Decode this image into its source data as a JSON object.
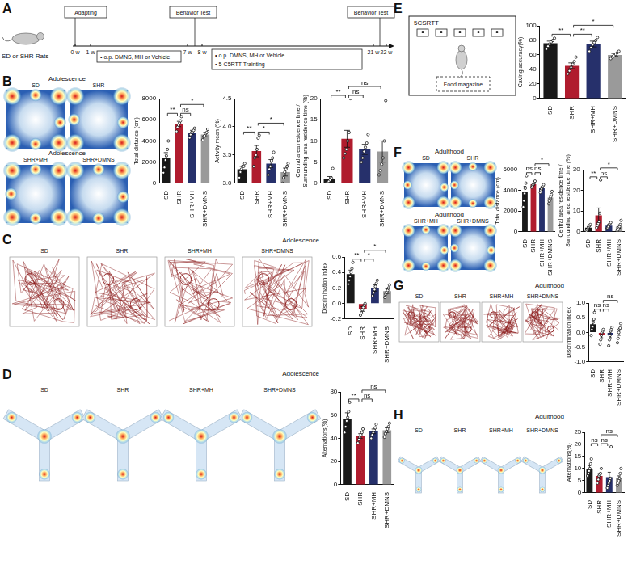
{
  "timeline": {
    "letter": "A",
    "subject": "SD or SHR Rats",
    "weeks": [
      "0 w",
      "1 w",
      "7 w",
      "8 w",
      "21 w",
      "22 w"
    ],
    "boxes": [
      {
        "lines": [
          "Adapting"
        ]
      },
      {
        "lines": [
          "• o.p. DMNS, MH or Vehicle"
        ]
      },
      {
        "lines": [
          "Behavior Test"
        ]
      },
      {
        "lines": [
          "• o.p. DMNS, MH or Vehicle",
          "• 5-C5RTT Trainting"
        ]
      },
      {
        "lines": [
          "Behavior Test"
        ]
      }
    ]
  },
  "task": {
    "letter": "E",
    "title": "5CSRTT",
    "box": "Food magazine"
  },
  "images": [
    {
      "letter": "B",
      "period": "Adolescence",
      "kind": "heatmap",
      "groups": [
        "SD",
        "SHR",
        "SHR+MH",
        "SHR+DMNS"
      ]
    },
    {
      "letter": "F",
      "period": "Adulthood",
      "kind": "heatmap",
      "groups": [
        "SD",
        "SHR",
        "SHR+MH",
        "SHR+DMNS"
      ]
    },
    {
      "letter": "C",
      "period": "Adolescence",
      "kind": "track",
      "groups": [
        "SD",
        "SHR",
        "SHR+MH",
        "SHR+DMNS"
      ]
    },
    {
      "letter": "G",
      "period": "Adulthood",
      "kind": "track",
      "groups": [
        "SD",
        "SHR",
        "SHR+MH",
        "SHR+DMNS"
      ]
    },
    {
      "letter": "D",
      "period": "Adolescence",
      "kind": "maze",
      "groups": [
        "SD",
        "SHR",
        "SHR+MH",
        "SHR+DMNS"
      ]
    },
    {
      "letter": "H",
      "period": "Adulthood",
      "kind": "maze",
      "groups": [
        "SD",
        "SHR",
        "SHR+MH",
        "SHR+DMNS"
      ]
    }
  ],
  "chart_data": [
    {
      "type": "bar",
      "y_label": "Total distance (cm)",
      "categories": [
        "SD",
        "SHR",
        "SHR+MH",
        "SHR+DMNS"
      ],
      "values": [
        2400,
        5600,
        4800,
        4600
      ],
      "errors": [
        500,
        250,
        200,
        200
      ],
      "points": [
        [
          1000,
          1500,
          2200,
          2600,
          3200,
          4000
        ],
        [
          4900,
          5300,
          5500,
          5700,
          5900,
          6300
        ],
        [
          4300,
          4600,
          4800,
          4900,
          5000,
          5200
        ],
        [
          4100,
          4400,
          4500,
          4700,
          4800,
          5100
        ]
      ],
      "colors": [
        "#1a1a1a",
        "#b01c2e",
        "#26306b",
        "#9a9a9a"
      ],
      "ylim": [
        0,
        8000
      ],
      "yticks": [
        0,
        2000,
        4000,
        6000,
        8000
      ],
      "grid": false,
      "significance": [
        {
          "from": "SD",
          "to": "SHR",
          "label": "**"
        },
        {
          "from": "SHR",
          "to": "SHR+MH",
          "label": "ns"
        },
        {
          "from": "SHR",
          "to": "SHR+DMNS",
          "label": "*"
        }
      ]
    },
    {
      "type": "bar",
      "y_label": "Activity mean (%)",
      "categories": [
        "SD",
        "SHR",
        "SHR+MH",
        "SHR+DMNS"
      ],
      "values": [
        3.25,
        3.57,
        3.35,
        3.2
      ],
      "errors": [
        0.05,
        0.1,
        0.07,
        0.07
      ],
      "points": [
        [
          3.1,
          3.2,
          3.25,
          3.3,
          3.3,
          3.35
        ],
        [
          3.3,
          3.45,
          3.5,
          3.6,
          3.8,
          3.85
        ],
        [
          3.15,
          3.25,
          3.3,
          3.4,
          3.45,
          3.55
        ],
        [
          3.0,
          3.1,
          3.2,
          3.25,
          3.3,
          3.35
        ]
      ],
      "colors": [
        "#1a1a1a",
        "#b01c2e",
        "#26306b",
        "#9a9a9a"
      ],
      "ylim": [
        3,
        4.5
      ],
      "yticks": [
        {
          "value": 3,
          "label": "3.0"
        },
        3.5,
        {
          "value": 4,
          "label": "4.0"
        },
        4.5
      ],
      "grid": false,
      "significance": [
        {
          "from": "SD",
          "to": "SHR",
          "label": "**"
        },
        {
          "from": "SHR",
          "to": "SHR+MH",
          "label": "*"
        },
        {
          "from": "SHR",
          "to": "SHR+DMNS",
          "label": "*"
        }
      ]
    },
    {
      "type": "bar",
      "y_label": [
        "Central area residence time /",
        "Surrounding area residence time (%)"
      ],
      "categories": [
        "SD",
        "SHR",
        "SHR+MH",
        "SHR+DMNS"
      ],
      "values": [
        1,
        10.5,
        8,
        7.5
      ],
      "errors": [
        0.6,
        2,
        1.2,
        2.5
      ],
      "points": [
        [
          0,
          0.2,
          0.5,
          0.8,
          1.2,
          3.5
        ],
        [
          6,
          7,
          8,
          10,
          12,
          20
        ],
        [
          5,
          6,
          7.5,
          8.5,
          9.5,
          11.5
        ],
        [
          2,
          3,
          4.5,
          6,
          10,
          19.5
        ]
      ],
      "colors": [
        "#1a1a1a",
        "#b01c2e",
        "#26306b",
        "#9a9a9a"
      ],
      "ylim": [
        0,
        20
      ],
      "yticks": [
        0,
        5,
        10,
        15,
        20
      ],
      "grid": false,
      "significance": [
        {
          "from": "SD",
          "to": "SHR",
          "label": "**"
        },
        {
          "from": "SHR",
          "to": "SHR+MH",
          "label": "ns"
        },
        {
          "from": "SHR",
          "to": "SHR+DMNS",
          "label": "ns"
        }
      ]
    },
    {
      "type": "bar",
      "y_label": "Discrimination index",
      "categories": [
        "SD",
        "SHR",
        "SHR+MH",
        "SHR+DMNS"
      ],
      "values": [
        0.38,
        -0.07,
        0.2,
        0.16
      ],
      "errors": [
        0.05,
        0.03,
        0.04,
        0.03
      ],
      "points": [
        [
          0.25,
          0.3,
          0.35,
          0.4,
          0.45,
          0.53
        ],
        [
          -0.15,
          -0.12,
          -0.08,
          -0.05,
          -0.02,
          0.0
        ],
        [
          0.1,
          0.14,
          0.18,
          0.22,
          0.26,
          0.3
        ],
        [
          0.08,
          0.12,
          0.15,
          0.17,
          0.2,
          0.24
        ]
      ],
      "colors": [
        "#1a1a1a",
        "#b01c2e",
        "#26306b",
        "#9a9a9a"
      ],
      "ylim": [
        -0.2,
        0.6
      ],
      "yticks": [
        -0.2,
        {
          "value": 0,
          "label": "0.0"
        },
        0.2,
        0.4,
        0.6
      ],
      "grid": false,
      "significance": [
        {
          "from": "SD",
          "to": "SHR",
          "label": "**"
        },
        {
          "from": "SHR",
          "to": "SHR+MH",
          "label": "*"
        },
        {
          "from": "SHR",
          "to": "SHR+DMNS",
          "label": "*"
        }
      ]
    },
    {
      "type": "bar",
      "y_label": "Alternations(%)",
      "categories": [
        "SD",
        "SHR",
        "SHR+MH",
        "SHR+DMNS"
      ],
      "values": [
        57,
        42,
        46,
        47
      ],
      "errors": [
        5,
        2,
        2,
        2
      ],
      "points": [
        [
          45,
          50,
          55,
          58,
          63,
          71
        ],
        [
          36,
          39,
          41,
          43,
          45,
          48
        ],
        [
          40,
          43,
          45,
          47,
          49,
          52
        ],
        [
          41,
          44,
          46,
          48,
          50,
          53
        ]
      ],
      "colors": [
        "#1a1a1a",
        "#b01c2e",
        "#26306b",
        "#9a9a9a"
      ],
      "ylim": [
        0,
        80
      ],
      "yticks": [
        0,
        20,
        40,
        60,
        80
      ],
      "grid": false,
      "significance": [
        {
          "from": "SD",
          "to": "SHR",
          "label": "**"
        },
        {
          "from": "SHR",
          "to": "SHR+MH",
          "label": "ns"
        },
        {
          "from": "SHR",
          "to": "SHR+DMNS",
          "label": "ns"
        }
      ]
    },
    {
      "type": "bar",
      "y_label": "Caving accuracy(%)",
      "categories": [
        "SD",
        "SHR",
        "SHR+MH",
        "SHR+DMNS"
      ],
      "values": [
        76,
        45,
        75,
        60
      ],
      "errors": [
        3,
        4,
        4,
        2
      ],
      "points": [
        [
          68,
          72,
          75,
          78,
          80,
          83
        ],
        [
          34,
          38,
          43,
          47,
          51,
          57
        ],
        [
          65,
          70,
          74,
          77,
          80,
          84
        ],
        [
          55,
          57,
          59,
          61,
          63,
          65
        ]
      ],
      "colors": [
        "#1a1a1a",
        "#b01c2e",
        "#26306b",
        "#9a9a9a"
      ],
      "ylim": [
        0,
        100
      ],
      "yticks": [
        0,
        20,
        40,
        60,
        80,
        100
      ],
      "grid": false,
      "significance": [
        {
          "from": "SD",
          "to": "SHR",
          "label": "**"
        },
        {
          "from": "SHR",
          "to": "SHR+MH",
          "label": "**"
        },
        {
          "from": "SHR",
          "to": "SHR+DMNS",
          "label": "*"
        }
      ]
    },
    {
      "type": "bar",
      "y_label": "Total distance (cm)",
      "categories": [
        "SD",
        "SHR",
        "SHR+MH",
        "SHR+DMNS"
      ],
      "values": [
        3900,
        4600,
        4200,
        3300
      ],
      "errors": [
        500,
        100,
        150,
        200
      ],
      "points": [
        [
          2400,
          3000,
          3700,
          4200,
          4700,
          5400
        ],
        [
          4300,
          4450,
          4550,
          4650,
          4750,
          4900
        ],
        [
          3800,
          4000,
          4150,
          4300,
          4400,
          4550
        ],
        [
          2700,
          3000,
          3200,
          3400,
          3600,
          3900
        ]
      ],
      "colors": [
        "#1a1a1a",
        "#b01c2e",
        "#26306b",
        "#9a9a9a"
      ],
      "ylim": [
        0,
        6000
      ],
      "yticks": [
        0,
        2000,
        4000,
        6000
      ],
      "grid": false,
      "significance": [
        {
          "from": "SD",
          "to": "SHR",
          "label": "ns"
        },
        {
          "from": "SHR",
          "to": "SHR+MH",
          "label": "ns"
        },
        {
          "from": "SHR",
          "to": "SHR+DMNS",
          "label": "*"
        }
      ]
    },
    {
      "type": "bar",
      "y_label": [
        "Central area residence time /",
        "Surrounding area residence time (%)"
      ],
      "categories": [
        "SD",
        "SHR",
        "SHR+MH",
        "SHR+DMNS"
      ],
      "values": [
        2,
        8,
        3,
        2.5
      ],
      "errors": [
        0.5,
        3.5,
        0.6,
        0.8
      ],
      "points": [
        [
          0.5,
          1,
          1.5,
          2.5,
          3,
          3.5
        ],
        [
          2,
          3,
          4,
          5,
          9,
          25
        ],
        [
          1.5,
          2,
          2.5,
          3.5,
          4,
          4.5
        ],
        [
          0.5,
          1,
          2,
          2.5,
          3.5,
          5.5
        ]
      ],
      "colors": [
        "#1a1a1a",
        "#b01c2e",
        "#26306b",
        "#9a9a9a"
      ],
      "ylim": [
        0,
        30
      ],
      "yticks": [
        0,
        10,
        20,
        30
      ],
      "grid": false,
      "significance": [
        {
          "from": "SD",
          "to": "SHR",
          "label": "**"
        },
        {
          "from": "SHR",
          "to": "SHR+MH",
          "label": "ns"
        },
        {
          "from": "SHR",
          "to": "SHR+DMNS",
          "label": "*"
        }
      ]
    },
    {
      "type": "bar",
      "y_label": "Discrimination index",
      "categories": [
        "SD",
        "SHR",
        "SHR+MH",
        "SHR+DMNS"
      ],
      "values": [
        0.28,
        -0.1,
        -0.08,
        0.0
      ],
      "errors": [
        0.12,
        0.08,
        0.1,
        0.1
      ],
      "points": [
        [
          -0.1,
          0.1,
          0.2,
          0.35,
          0.45,
          0.68
        ],
        [
          -0.4,
          -0.25,
          -0.1,
          0.0,
          0.05,
          0.1
        ],
        [
          -0.45,
          -0.25,
          -0.1,
          0.05,
          0.1,
          0.17
        ],
        [
          -0.35,
          -0.2,
          0.0,
          0.1,
          0.15,
          0.3
        ]
      ],
      "colors": [
        "#1a1a1a",
        "#b01c2e",
        "#26306b",
        "#9a9a9a"
      ],
      "ylim": [
        -1,
        1
      ],
      "yticks": [
        {
          "value": -1,
          "label": "-1.0"
        },
        -0.5,
        {
          "value": 0,
          "label": "0.0"
        },
        0.5,
        {
          "value": 1,
          "label": "1.0"
        }
      ],
      "grid": false,
      "significance": [
        {
          "from": "SD",
          "to": "SHR",
          "label": "ns"
        },
        {
          "from": "SHR",
          "to": "SHR+MH",
          "label": "ns"
        },
        {
          "from": "SHR",
          "to": "SHR+DMNS",
          "label": "ns"
        }
      ]
    },
    {
      "type": "bar",
      "y_label": "Alternations(%)",
      "categories": [
        "SD",
        "SHR",
        "SHR+MH",
        "SHR+DMNS"
      ],
      "values": [
        10,
        7,
        6.5,
        6
      ],
      "errors": [
        1.2,
        1,
        2,
        1
      ],
      "points": [
        [
          7,
          8,
          9,
          10,
          12,
          14
        ],
        [
          4,
          5.5,
          7,
          7.5,
          8,
          10
        ],
        [
          2,
          3,
          4,
          5,
          6,
          19
        ],
        [
          3,
          4,
          5,
          6,
          8,
          10
        ]
      ],
      "colors": [
        "#1a1a1a",
        "#b01c2e",
        "#26306b",
        "#9a9a9a"
      ],
      "ylim": [
        0,
        25
      ],
      "yticks": [
        0,
        5,
        10,
        15,
        20,
        25
      ],
      "grid": false,
      "significance": [
        {
          "from": "SD",
          "to": "SHR",
          "label": "ns"
        },
        {
          "from": "SHR",
          "to": "SHR+MH",
          "label": "ns"
        },
        {
          "from": "SHR",
          "to": "SHR+DMNS",
          "label": "ns"
        }
      ]
    }
  ]
}
